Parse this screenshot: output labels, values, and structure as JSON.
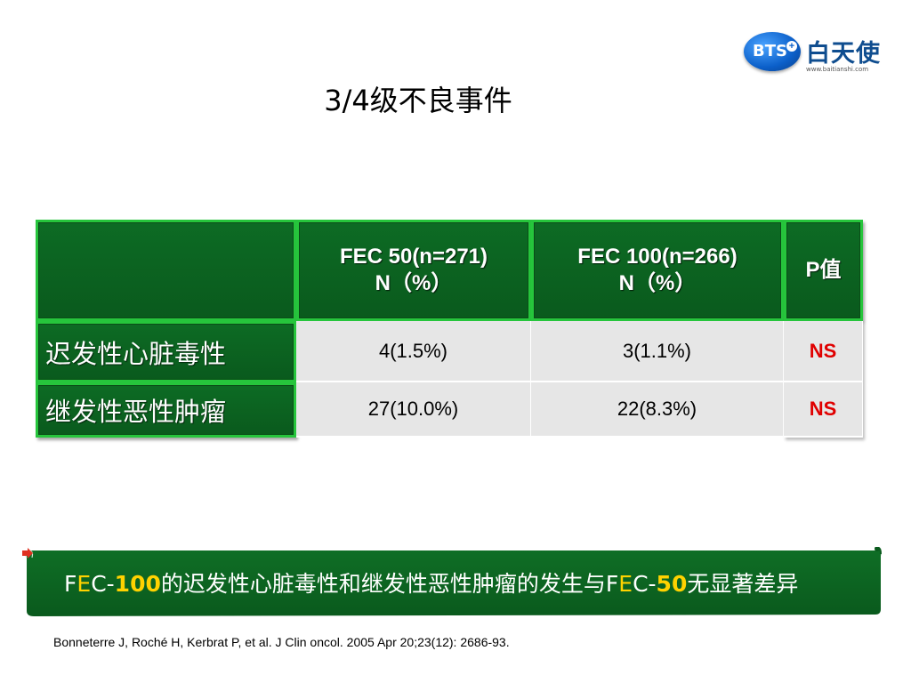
{
  "logo": {
    "badge": "BTS",
    "name_cn": "白天使",
    "url": "www.baitianshi.com"
  },
  "title": "3/4级不良事件",
  "table": {
    "header": {
      "col1_line1": "FEC 50(n=271)",
      "col1_line2": "N（%）",
      "col2_line1": "FEC 100(n=266)",
      "col2_line2": "N（%）",
      "col3": "P值"
    },
    "rows": [
      {
        "label": "迟发性心脏毒性",
        "fec50": "4(1.5%)",
        "fec100": "3(1.1%)",
        "p": "NS"
      },
      {
        "label": "继发性恶性肿瘤",
        "fec50": "27(10.0%)",
        "fec100": "22(8.3%)",
        "p": "NS"
      }
    ]
  },
  "banner": {
    "f1": "F",
    "e1": "E",
    "c1": "C-",
    "n1": "100",
    "mid": "的迟发性心脏毒性和继发性恶性肿瘤的发生与",
    "f2": "F",
    "e2": "E",
    "c2": "C-",
    "n2": "50",
    "end": "无显著差异"
  },
  "reference": "Bonneterre J, Roché H, Kerbrat P, et al. J Clin oncol. 2005 Apr 20;23(12): 2686-93.",
  "colors": {
    "green": "#0a5a1d",
    "accent_yellow": "#ffd200",
    "ns_red": "#e00000"
  }
}
